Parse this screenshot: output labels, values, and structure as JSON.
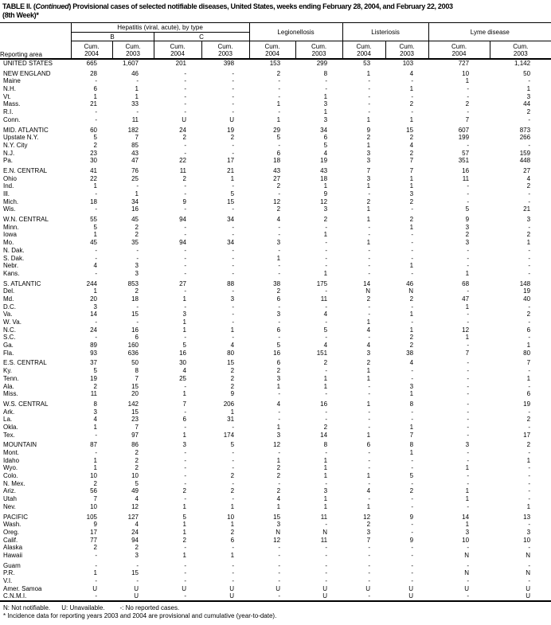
{
  "title": {
    "prefix": "TABLE II. (",
    "continued": "Continued",
    "rest": ") Provisional cases of selected notifiable diseases, United States, weeks ending February 28, 2004, and February 22, 2003",
    "line2": "(8th Week)*"
  },
  "table": {
    "reporting_area_label": "Reporting area",
    "groups": {
      "hepatitis": "Hepatitis (viral, acute), by type",
      "hep_b": "B",
      "hep_c": "C",
      "legionellosis": "Legionellosis",
      "listeriosis": "Listeriosis",
      "lyme": "Lyme disease"
    },
    "cum_label": "Cum.",
    "years": [
      "2004",
      "2003",
      "2004",
      "2003",
      "2004",
      "2003",
      "2004",
      "2003",
      "2004",
      "2003"
    ],
    "rows": [
      {
        "a": "UNITED STATES",
        "v": [
          "665",
          "1,607",
          "201",
          "398",
          "153",
          "299",
          "53",
          "103",
          "727",
          "1,142"
        ]
      },
      {
        "a": "NEW ENGLAND",
        "gap": true,
        "v": [
          "28",
          "46",
          "-",
          "-",
          "2",
          "8",
          "1",
          "4",
          "10",
          "50"
        ]
      },
      {
        "a": "Maine",
        "v": [
          "-",
          "-",
          "-",
          "-",
          "-",
          "-",
          "-",
          "-",
          "1",
          "-"
        ]
      },
      {
        "a": "N.H.",
        "v": [
          "6",
          "1",
          "-",
          "-",
          "-",
          "-",
          "-",
          "1",
          "-",
          "1"
        ]
      },
      {
        "a": "Vt.",
        "v": [
          "1",
          "1",
          "-",
          "-",
          "-",
          "1",
          "-",
          "-",
          "-",
          "3"
        ]
      },
      {
        "a": "Mass.",
        "v": [
          "21",
          "33",
          "-",
          "-",
          "1",
          "3",
          "-",
          "2",
          "2",
          "44"
        ]
      },
      {
        "a": "R.I.",
        "v": [
          "-",
          "-",
          "-",
          "-",
          "-",
          "1",
          "-",
          "-",
          "-",
          "2"
        ]
      },
      {
        "a": "Conn.",
        "v": [
          "-",
          "11",
          "U",
          "U",
          "1",
          "3",
          "1",
          "1",
          "7",
          "-"
        ]
      },
      {
        "a": "MID. ATLANTIC",
        "gap": true,
        "v": [
          "60",
          "182",
          "24",
          "19",
          "29",
          "34",
          "9",
          "15",
          "607",
          "873"
        ]
      },
      {
        "a": "Upstate N.Y.",
        "v": [
          "5",
          "7",
          "2",
          "2",
          "5",
          "6",
          "2",
          "2",
          "199",
          "266"
        ]
      },
      {
        "a": "N.Y. City",
        "v": [
          "2",
          "85",
          "-",
          "-",
          "-",
          "5",
          "1",
          "4",
          "-",
          "-"
        ]
      },
      {
        "a": "N.J.",
        "v": [
          "23",
          "43",
          "-",
          "-",
          "6",
          "4",
          "3",
          "2",
          "57",
          "159"
        ]
      },
      {
        "a": "Pa.",
        "v": [
          "30",
          "47",
          "22",
          "17",
          "18",
          "19",
          "3",
          "7",
          "351",
          "448"
        ]
      },
      {
        "a": "E.N. CENTRAL",
        "gap": true,
        "v": [
          "41",
          "76",
          "11",
          "21",
          "43",
          "43",
          "7",
          "7",
          "16",
          "27"
        ]
      },
      {
        "a": "Ohio",
        "v": [
          "22",
          "25",
          "2",
          "1",
          "27",
          "18",
          "3",
          "1",
          "11",
          "4"
        ]
      },
      {
        "a": "Ind.",
        "v": [
          "1",
          "-",
          "-",
          "-",
          "2",
          "1",
          "1",
          "1",
          "-",
          "2"
        ]
      },
      {
        "a": "Ill.",
        "v": [
          "-",
          "1",
          "-",
          "5",
          "-",
          "9",
          "-",
          "3",
          "-",
          "-"
        ]
      },
      {
        "a": "Mich.",
        "v": [
          "18",
          "34",
          "9",
          "15",
          "12",
          "12",
          "2",
          "2",
          "-",
          "-"
        ]
      },
      {
        "a": "Wis.",
        "v": [
          "-",
          "16",
          "-",
          "-",
          "2",
          "3",
          "1",
          "-",
          "5",
          "21"
        ]
      },
      {
        "a": "W.N. CENTRAL",
        "gap": true,
        "v": [
          "55",
          "45",
          "94",
          "34",
          "4",
          "2",
          "1",
          "2",
          "9",
          "3"
        ]
      },
      {
        "a": "Minn.",
        "v": [
          "5",
          "2",
          "-",
          "-",
          "-",
          "-",
          "-",
          "1",
          "3",
          "-"
        ]
      },
      {
        "a": "Iowa",
        "v": [
          "1",
          "2",
          "-",
          "-",
          "-",
          "1",
          "-",
          "-",
          "2",
          "2"
        ]
      },
      {
        "a": "Mo.",
        "v": [
          "45",
          "35",
          "94",
          "34",
          "3",
          "-",
          "1",
          "-",
          "3",
          "1"
        ]
      },
      {
        "a": "N. Dak.",
        "v": [
          "-",
          "-",
          "-",
          "-",
          "-",
          "-",
          "-",
          "-",
          "-",
          "-"
        ]
      },
      {
        "a": "S. Dak.",
        "v": [
          "-",
          "-",
          "-",
          "-",
          "1",
          "-",
          "-",
          "-",
          "-",
          "-"
        ]
      },
      {
        "a": "Nebr.",
        "v": [
          "4",
          "3",
          "-",
          "-",
          "-",
          "-",
          "-",
          "1",
          "-",
          "-"
        ]
      },
      {
        "a": "Kans.",
        "v": [
          "-",
          "3",
          "-",
          "-",
          "-",
          "1",
          "-",
          "-",
          "1",
          "-"
        ]
      },
      {
        "a": "S. ATLANTIC",
        "gap": true,
        "v": [
          "244",
          "853",
          "27",
          "88",
          "38",
          "175",
          "14",
          "46",
          "68",
          "148"
        ]
      },
      {
        "a": "Del.",
        "v": [
          "1",
          "2",
          "-",
          "-",
          "2",
          "-",
          "N",
          "N",
          "-",
          "19"
        ]
      },
      {
        "a": "Md.",
        "v": [
          "20",
          "18",
          "1",
          "3",
          "6",
          "11",
          "2",
          "2",
          "47",
          "40"
        ]
      },
      {
        "a": "D.C.",
        "v": [
          "3",
          "-",
          "-",
          "-",
          "-",
          "-",
          "-",
          "-",
          "1",
          "-"
        ]
      },
      {
        "a": "Va.",
        "v": [
          "14",
          "15",
          "3",
          "-",
          "3",
          "4",
          "-",
          "1",
          "-",
          "2"
        ]
      },
      {
        "a": "W. Va.",
        "v": [
          "-",
          "-",
          "1",
          "-",
          "-",
          "-",
          "1",
          "-",
          "-",
          "-"
        ]
      },
      {
        "a": "N.C.",
        "v": [
          "24",
          "16",
          "1",
          "1",
          "6",
          "5",
          "4",
          "1",
          "12",
          "6"
        ]
      },
      {
        "a": "S.C.",
        "v": [
          "-",
          "6",
          "-",
          "-",
          "-",
          "-",
          "-",
          "2",
          "1",
          "-"
        ]
      },
      {
        "a": "Ga.",
        "v": [
          "89",
          "160",
          "5",
          "4",
          "5",
          "4",
          "4",
          "2",
          "-",
          "1"
        ]
      },
      {
        "a": "Fla.",
        "v": [
          "93",
          "636",
          "16",
          "80",
          "16",
          "151",
          "3",
          "38",
          "7",
          "80"
        ]
      },
      {
        "a": "E.S. CENTRAL",
        "gap": true,
        "v": [
          "37",
          "50",
          "30",
          "15",
          "6",
          "2",
          "2",
          "4",
          "-",
          "7"
        ]
      },
      {
        "a": "Ky.",
        "v": [
          "5",
          "8",
          "4",
          "2",
          "2",
          "-",
          "1",
          "-",
          "-",
          "-"
        ]
      },
      {
        "a": "Tenn.",
        "v": [
          "19",
          "7",
          "25",
          "2",
          "3",
          "1",
          "1",
          "-",
          "-",
          "1"
        ]
      },
      {
        "a": "Ala.",
        "v": [
          "2",
          "15",
          "-",
          "2",
          "1",
          "1",
          "-",
          "3",
          "-",
          "-"
        ]
      },
      {
        "a": "Miss.",
        "v": [
          "11",
          "20",
          "1",
          "9",
          "-",
          "-",
          "-",
          "1",
          "-",
          "6"
        ]
      },
      {
        "a": "W.S. CENTRAL",
        "gap": true,
        "v": [
          "8",
          "142",
          "7",
          "206",
          "4",
          "16",
          "1",
          "8",
          "-",
          "19"
        ]
      },
      {
        "a": "Ark.",
        "v": [
          "3",
          "15",
          "-",
          "1",
          "-",
          "-",
          "-",
          "-",
          "-",
          "-"
        ]
      },
      {
        "a": "La.",
        "v": [
          "4",
          "23",
          "6",
          "31",
          "-",
          "-",
          "-",
          "-",
          "-",
          "2"
        ]
      },
      {
        "a": "Okla.",
        "v": [
          "1",
          "7",
          "-",
          "-",
          "1",
          "2",
          "-",
          "1",
          "-",
          "-"
        ]
      },
      {
        "a": "Tex.",
        "v": [
          "-",
          "97",
          "1",
          "174",
          "3",
          "14",
          "1",
          "7",
          "-",
          "17"
        ]
      },
      {
        "a": "MOUNTAIN",
        "gap": true,
        "v": [
          "87",
          "86",
          "3",
          "5",
          "12",
          "8",
          "6",
          "8",
          "3",
          "2"
        ]
      },
      {
        "a": "Mont.",
        "v": [
          "-",
          "2",
          "-",
          "-",
          "-",
          "-",
          "-",
          "1",
          "-",
          "-"
        ]
      },
      {
        "a": "Idaho",
        "v": [
          "1",
          "2",
          "-",
          "-",
          "1",
          "1",
          "-",
          "-",
          "-",
          "1"
        ]
      },
      {
        "a": "Wyo.",
        "v": [
          "1",
          "2",
          "-",
          "-",
          "2",
          "1",
          "-",
          "-",
          "1",
          "-"
        ]
      },
      {
        "a": "Colo.",
        "v": [
          "10",
          "10",
          "-",
          "2",
          "2",
          "1",
          "1",
          "5",
          "-",
          "-"
        ]
      },
      {
        "a": "N. Mex.",
        "v": [
          "2",
          "5",
          "-",
          "-",
          "-",
          "-",
          "-",
          "-",
          "-",
          "-"
        ]
      },
      {
        "a": "Ariz.",
        "v": [
          "56",
          "49",
          "2",
          "2",
          "2",
          "3",
          "4",
          "2",
          "1",
          "-"
        ]
      },
      {
        "a": "Utah",
        "v": [
          "7",
          "4",
          "-",
          "-",
          "4",
          "1",
          "-",
          "-",
          "1",
          "-"
        ]
      },
      {
        "a": "Nev.",
        "v": [
          "10",
          "12",
          "1",
          "1",
          "1",
          "1",
          "1",
          "-",
          "-",
          "1"
        ]
      },
      {
        "a": "PACIFIC",
        "gap": true,
        "v": [
          "105",
          "127",
          "5",
          "10",
          "15",
          "11",
          "12",
          "9",
          "14",
          "13"
        ]
      },
      {
        "a": "Wash.",
        "v": [
          "9",
          "4",
          "1",
          "1",
          "3",
          "-",
          "2",
          "-",
          "1",
          "-"
        ]
      },
      {
        "a": "Oreg.",
        "v": [
          "17",
          "24",
          "1",
          "2",
          "N",
          "N",
          "3",
          "-",
          "3",
          "3"
        ]
      },
      {
        "a": "Calif.",
        "v": [
          "77",
          "94",
          "2",
          "6",
          "12",
          "11",
          "7",
          "9",
          "10",
          "10"
        ]
      },
      {
        "a": "Alaska",
        "v": [
          "2",
          "2",
          "-",
          "-",
          "-",
          "-",
          "-",
          "-",
          "-",
          "-"
        ]
      },
      {
        "a": "Hawaii",
        "v": [
          "-",
          "3",
          "1",
          "1",
          "-",
          "-",
          "-",
          "-",
          "N",
          "N"
        ]
      },
      {
        "a": "Guam",
        "gap": true,
        "v": [
          "-",
          "-",
          "-",
          "-",
          "-",
          "-",
          "-",
          "-",
          "-",
          "-"
        ]
      },
      {
        "a": "P.R.",
        "v": [
          "1",
          "15",
          "-",
          "-",
          "-",
          "-",
          "-",
          "-",
          "N",
          "N"
        ]
      },
      {
        "a": "V.I.",
        "v": [
          "-",
          "-",
          "-",
          "-",
          "-",
          "-",
          "-",
          "-",
          "-",
          "-"
        ]
      },
      {
        "a": "Amer. Samoa",
        "v": [
          "U",
          "U",
          "U",
          "U",
          "U",
          "U",
          "U",
          "U",
          "U",
          "U"
        ]
      },
      {
        "a": "C.N.M.I.",
        "v": [
          "-",
          "U",
          "-",
          "U",
          "-",
          "U",
          "-",
          "U",
          "-",
          "U"
        ]
      }
    ]
  },
  "legend": {
    "n": "N: Not notifiable.",
    "u": "U: Unavailable.",
    "dash": "-: No reported cases."
  },
  "footnote": "* Incidence data for reporting years 2003 and 2004 are provisional and cumulative (year-to-date)."
}
